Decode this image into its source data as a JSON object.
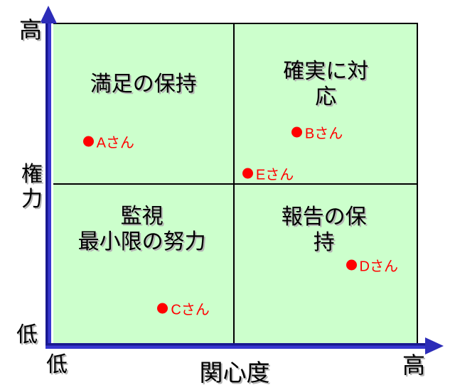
{
  "chart_data": {
    "type": "scatter",
    "variant": "power-interest-quadrant-grid",
    "title": "",
    "xlabel": "関心度",
    "ylabel": "権力",
    "x_axis": {
      "title": "関心度",
      "min_label": "低",
      "max_label": "高"
    },
    "y_axis": {
      "title": "権力",
      "min_label": "低",
      "max_label": "高"
    },
    "x_range": [
      0,
      1
    ],
    "y_range": [
      0,
      1
    ],
    "grid": "2x2 quadrant dividers at x=0.5, y=0.5",
    "legend": "none",
    "quadrants": [
      {
        "position": "top-left",
        "label": "満足の保持"
      },
      {
        "position": "top-right",
        "label": "確実に対応"
      },
      {
        "position": "bottom-left",
        "label": "監視\n最小限の努力"
      },
      {
        "position": "bottom-right",
        "label": "報告の保持"
      }
    ],
    "points": [
      {
        "label": "Aさん",
        "x": 0.097,
        "y": 0.634
      },
      {
        "label": "Bさん",
        "x": 0.671,
        "y": 0.663
      },
      {
        "label": "Cさん",
        "x": 0.302,
        "y": 0.115
      },
      {
        "label": "Dさん",
        "x": 0.821,
        "y": 0.249
      },
      {
        "label": "Eさん",
        "x": 0.536,
        "y": 0.535
      }
    ],
    "colors": {
      "plot_background": "#ccffcc",
      "axis": "#3333cc",
      "point": "#ff0000",
      "grid_line": "#000000",
      "label_text": "#000000"
    }
  }
}
